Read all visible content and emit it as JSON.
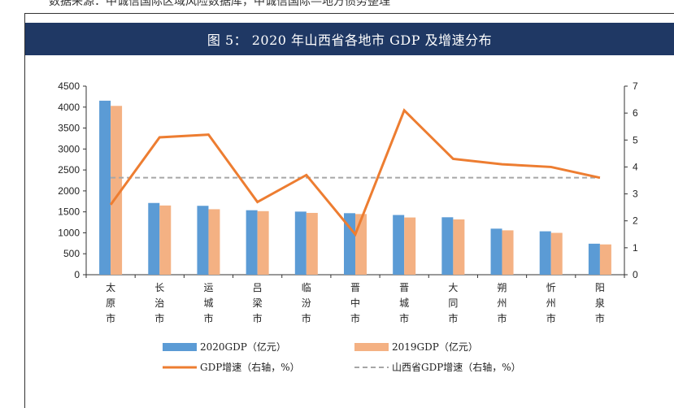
{
  "header": {
    "source_line": "数据来源：中诚信国际区域风险数据库，中诚信国际—地方债务整理",
    "figure_title": "图 5：  2020 年山西省各地市 GDP 及增速分布"
  },
  "colors": {
    "banner": "#1f3864",
    "gdp2020": "#5b9bd5",
    "gdp2019": "#f4b183",
    "growth": "#ed7d31",
    "province_growth": "#a6a6a6"
  },
  "chart_data": {
    "type": "bar",
    "title": "2020 年山西省各地市 GDP 及增速分布",
    "categories": [
      "太原市",
      "长治市",
      "运城市",
      "吕梁市",
      "临汾市",
      "晋中市",
      "晋城市",
      "大同市",
      "朔州市",
      "忻州市",
      "阳泉市"
    ],
    "y_left": {
      "min": 0,
      "max": 4500,
      "step": 500,
      "ticks": [
        "0",
        "500",
        "1000",
        "1500",
        "2000",
        "2500",
        "3000",
        "3500",
        "4000",
        "4500"
      ]
    },
    "y_right": {
      "min": 0,
      "max": 7,
      "step": 1,
      "ticks": [
        "0",
        "1",
        "2",
        "3",
        "4",
        "5",
        "6",
        "7"
      ]
    },
    "series": [
      {
        "name": "2020GDP（亿元）",
        "type": "bar",
        "axis": "left",
        "values": [
          4153,
          1712,
          1644,
          1539,
          1506,
          1468,
          1425,
          1371,
          1099,
          1036,
          740
        ]
      },
      {
        "name": "2019GDP（亿元）",
        "type": "bar",
        "axis": "left",
        "values": [
          4029,
          1652,
          1563,
          1517,
          1475,
          1448,
          1366,
          1320,
          1059,
          999,
          723
        ]
      },
      {
        "name": "GDP增速（右轴，%）",
        "type": "line",
        "axis": "right",
        "values": [
          2.6,
          5.1,
          5.2,
          2.7,
          3.7,
          1.5,
          6.1,
          4.3,
          4.1,
          4.0,
          3.6
        ]
      },
      {
        "name": "山西省GDP增速（右轴，%）",
        "type": "line",
        "axis": "right",
        "style": "dashed",
        "values": [
          3.6,
          3.6,
          3.6,
          3.6,
          3.6,
          3.6,
          3.6,
          3.6,
          3.6,
          3.6,
          3.6
        ]
      }
    ],
    "grid": false,
    "legend_position": "bottom"
  }
}
